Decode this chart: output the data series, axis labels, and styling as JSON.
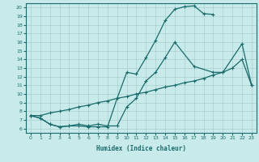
{
  "xlabel": "Humidex (Indice chaleur)",
  "bg_color": "#c8eaea",
  "grid_color": "#a8d0d0",
  "line_color": "#1a6b6b",
  "xlim": [
    -0.5,
    23.5
  ],
  "ylim": [
    5.5,
    20.5
  ],
  "xticks": [
    0,
    1,
    2,
    3,
    4,
    5,
    6,
    7,
    8,
    9,
    10,
    11,
    12,
    13,
    14,
    15,
    16,
    17,
    18,
    19,
    20,
    21,
    22,
    23
  ],
  "yticks": [
    6,
    7,
    8,
    9,
    10,
    11,
    12,
    13,
    14,
    15,
    16,
    17,
    18,
    19,
    20
  ],
  "curve1_x": [
    0,
    1,
    2,
    3,
    4,
    5,
    6,
    7,
    8,
    9,
    10,
    11,
    12,
    13,
    14,
    15,
    16,
    17,
    18,
    19
  ],
  "curve1_y": [
    7.5,
    7.2,
    6.5,
    6.2,
    6.3,
    6.3,
    6.2,
    6.2,
    6.2,
    9.5,
    12.5,
    12.3,
    14.2,
    16.2,
    18.5,
    19.8,
    20.1,
    20.2,
    19.3,
    19.2
  ],
  "curve2_x": [
    0,
    1,
    2,
    3,
    4,
    5,
    6,
    7,
    8,
    9,
    10,
    11,
    12,
    13,
    14,
    15,
    17,
    19,
    20,
    22,
    23
  ],
  "curve2_y": [
    7.5,
    7.2,
    6.5,
    6.2,
    6.3,
    6.5,
    6.3,
    6.5,
    6.3,
    6.3,
    8.5,
    9.5,
    11.5,
    12.5,
    14.2,
    16.0,
    13.2,
    12.5,
    12.5,
    15.8,
    11.0
  ],
  "curve3_x": [
    0,
    1,
    2,
    3,
    4,
    5,
    6,
    7,
    8,
    9,
    10,
    11,
    12,
    13,
    14,
    15,
    16,
    17,
    18,
    19,
    20,
    21,
    22,
    23
  ],
  "curve3_y": [
    7.5,
    7.5,
    7.8,
    8.0,
    8.2,
    8.5,
    8.7,
    9.0,
    9.2,
    9.5,
    9.7,
    10.0,
    10.2,
    10.5,
    10.8,
    11.0,
    11.3,
    11.5,
    11.8,
    12.2,
    12.5,
    13.0,
    14.0,
    11.0
  ]
}
